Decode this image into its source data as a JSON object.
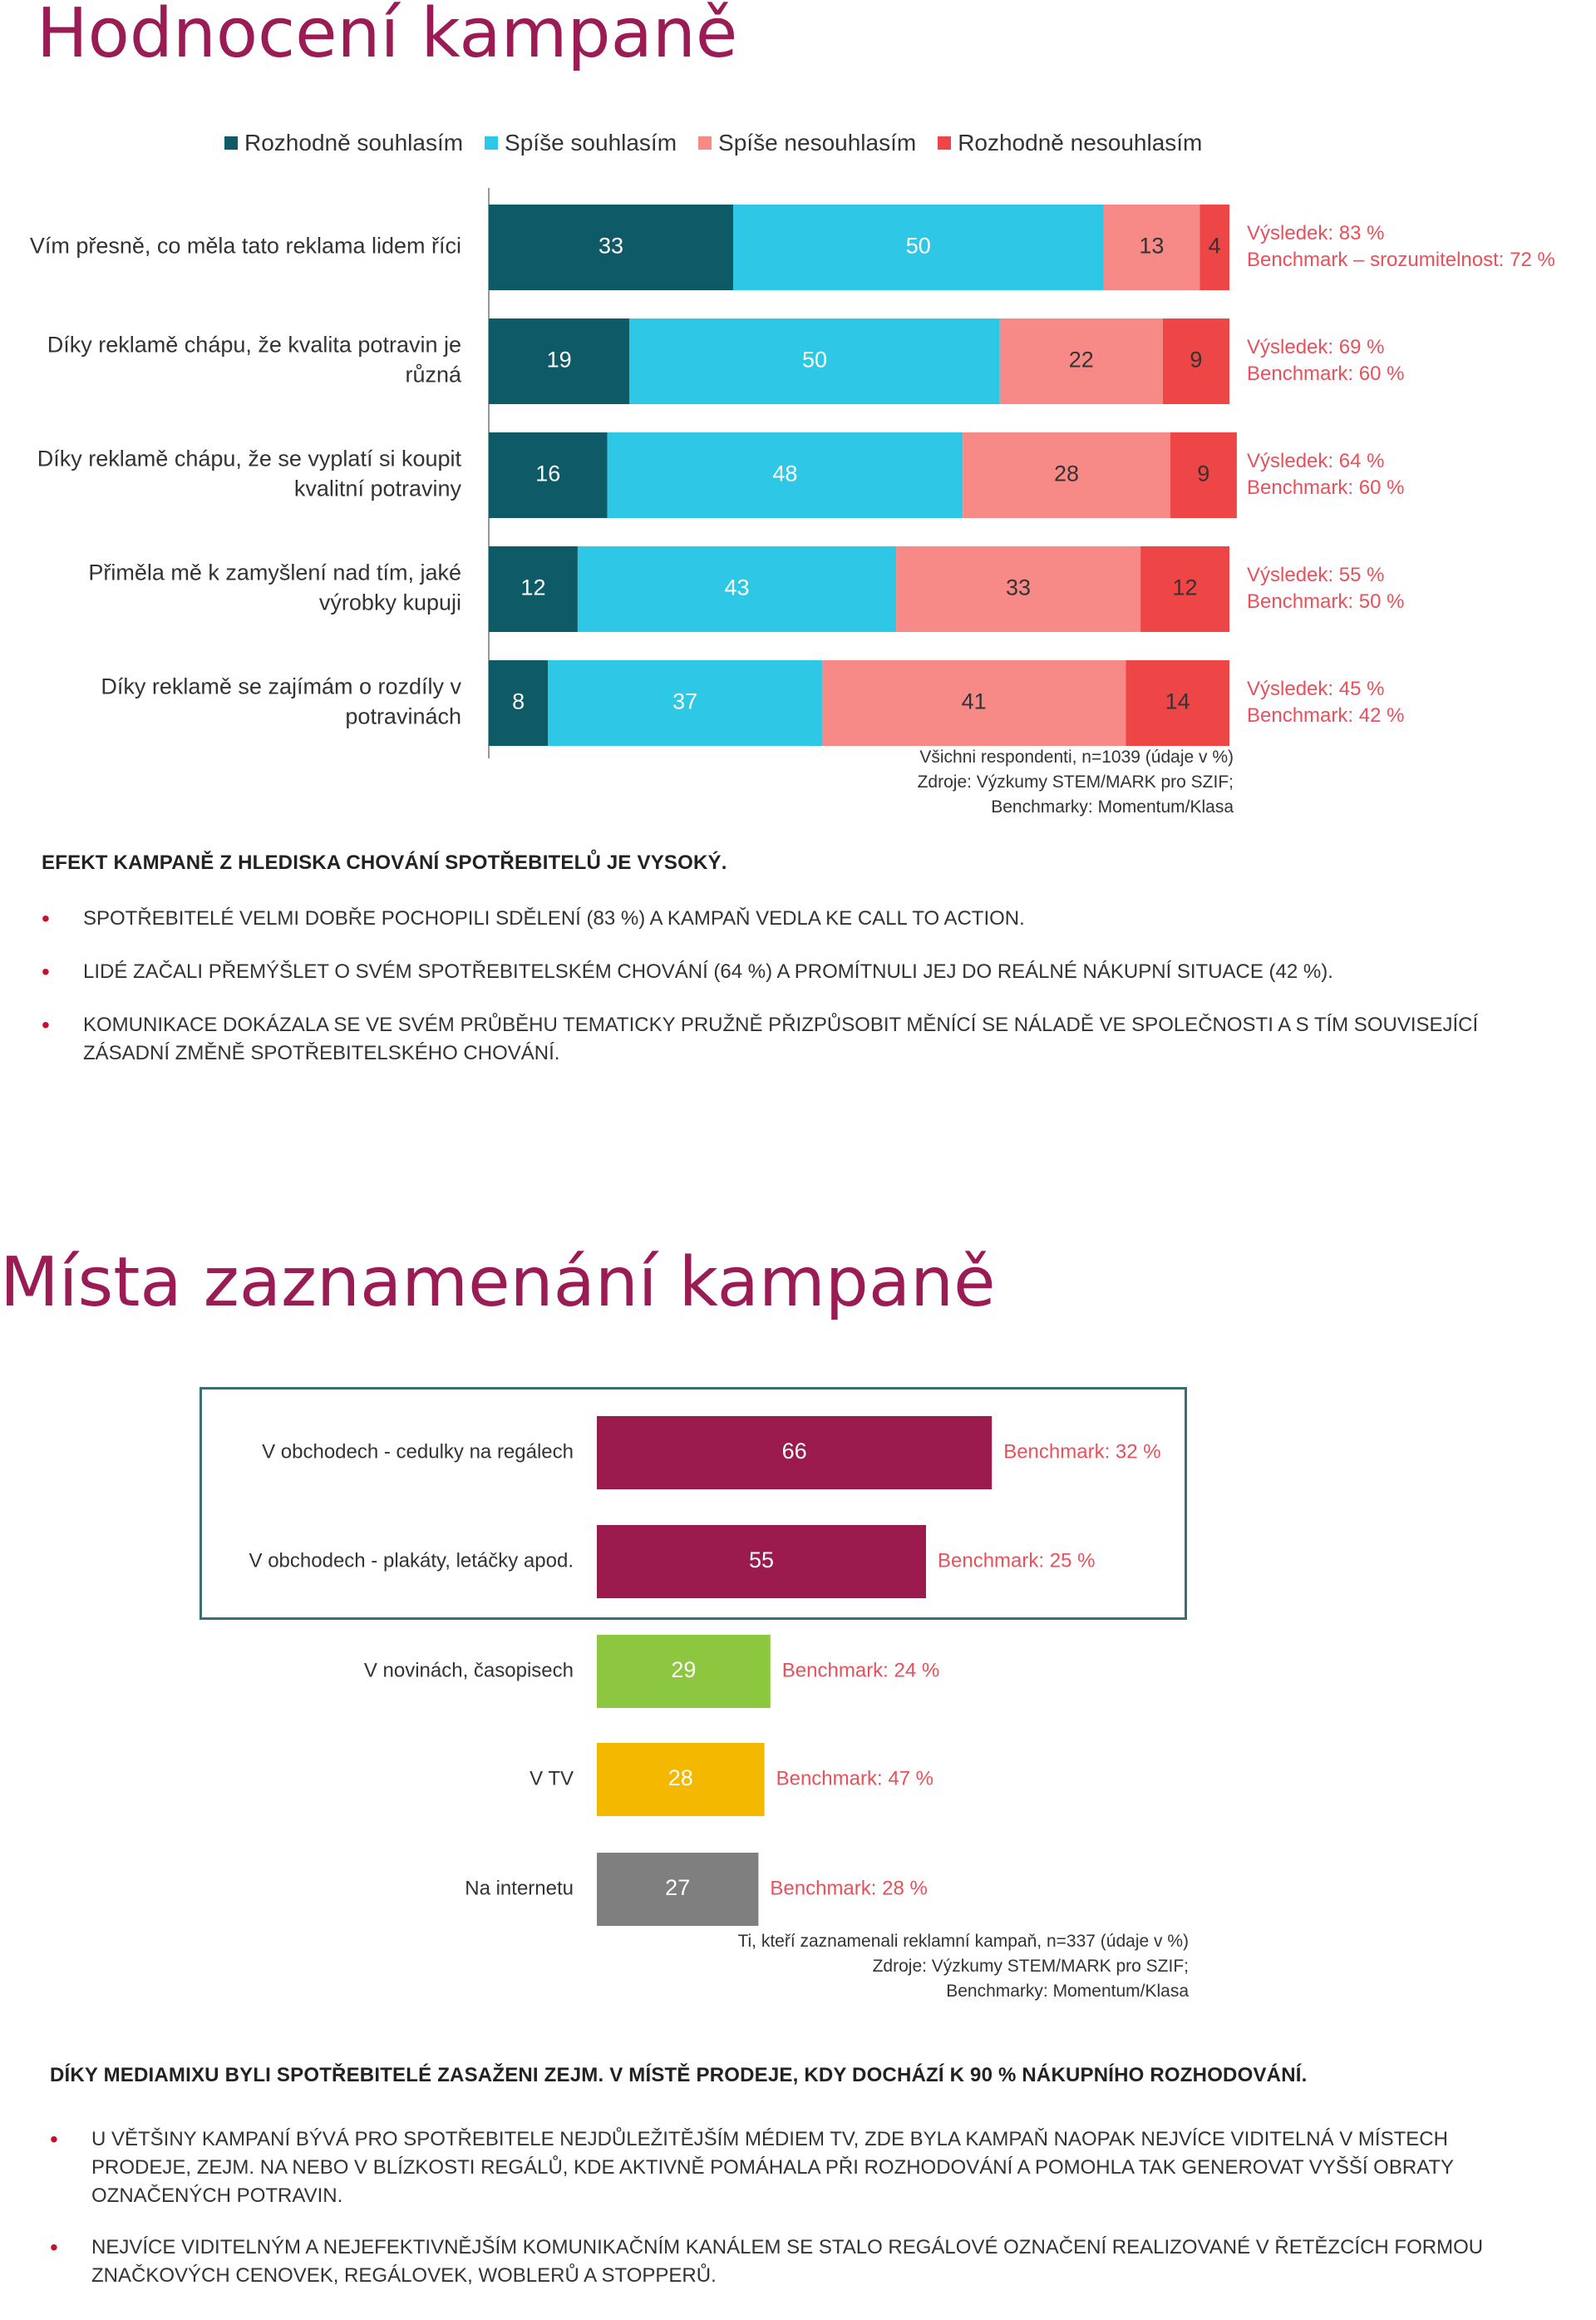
{
  "section1": {
    "title": "Hodnocení kampaně",
    "source_lines": [
      "Všichni respondenti, n=1039 (údaje v %)",
      "Zdroje: Výzkumy STEM/MARK pro SZIF;",
      "Benchmarky: Momentum/Klasa"
    ],
    "heading": "EFEKT KAMPANĚ Z HLEDISKA CHOVÁNÍ SPOTŘEBITELŮ JE VYSOKÝ.",
    "bullets": [
      "SPOTŘEBITELÉ VELMI DOBŘE POCHOPILI SDĚLENÍ (83 %) A KAMPAŇ VEDLA KE CALL TO ACTION.",
      "LIDÉ ZAČALI PŘEMÝŠLET O SVÉM SPOTŘEBITELSKÉM CHOVÁNÍ (64 %) A PROMÍTNULI JEJ DO REÁLNÉ NÁKUPNÍ SITUACE (42 %).",
      "KOMUNIKACE DOKÁZALA SE VE SVÉM PRŮBĚHU TEMATICKY PRUŽNĚ PŘIZPŮSOBIT MĚNÍCÍ SE NÁLADĚ VE SPOLEČNOSTI A S TÍM SOUVISEJÍCÍ ZÁSADNÍ ZMĚNĚ SPOTŘEBITELSKÉHO CHOVÁNÍ."
    ]
  },
  "section2": {
    "title": "Místa zaznamenání kampaně",
    "source_lines": [
      "Ti, kteří zaznamenali reklamní kampaň, n=337 (údaje v %)",
      "Zdroje: Výzkumy STEM/MARK pro SZIF;",
      "Benchmarky: Momentum/Klasa"
    ],
    "heading": "DÍKY MEDIAMIXU BYLI SPOTŘEBITELÉ ZASAŽENI ZEJM. V MÍSTĚ PRODEJE, KDY DOCHÁZÍ K 90 % NÁKUPNÍHO ROZHODOVÁNÍ.",
    "bullets": [
      "U VĚTŠINY KAMPANÍ BÝVÁ PRO SPOTŘEBITELE NEJDŮLEŽITĚJŠÍM MÉDIEM TV, ZDE BYLA KAMPAŇ NAOPAK NEJVÍCE VIDITELNÁ V MÍSTECH PRODEJE, ZEJM. NA NEBO V BLÍZKOSTI REGÁLŮ, KDE AKTIVNĚ POMÁHALA PŘI ROZHODOVÁNÍ A POMOHLA TAK GENEROVAT VYŠŠÍ OBRATY OZNAČENÝCH POTRAVIN.",
      "NEJVÍCE VIDITELNÝM A NEJEFEKTIVNĚJŠÍM KOMUNIKAČNÍM KANÁLEM SE STALO REGÁLOVÉ OZNAČENÍ REALIZOVANÉ V ŘETĚZCÍCH FORMOU ZNAČKOVÝCH CENOVEK, REGÁLOVEK, WOBLERŮ A STOPPERŮ."
    ]
  },
  "chart_data": [
    {
      "type": "bar",
      "orientation": "horizontal",
      "stacked": true,
      "legend_position": "top",
      "grid": false,
      "xlim": [
        0,
        100
      ],
      "categories": [
        "Vím přesně, co měla tato reklama lidem říci",
        "Díky reklamě chápu, že kvalita potravin je různá",
        "Díky reklamě chápu, že se vyplatí si koupit kvalitní potraviny",
        "Přiměla mě k zamyšlení nad tím, jaké výrobky kupuji",
        "Díky reklamě se zajímám o rozdíly v potravinách"
      ],
      "series": [
        {
          "name": "Rozhodně souhlasím",
          "color": "#0e5a66",
          "values": [
            33,
            19,
            16,
            12,
            8
          ]
        },
        {
          "name": "Spíše souhlasím",
          "color": "#2ec7e6",
          "values": [
            50,
            50,
            48,
            43,
            37
          ]
        },
        {
          "name": "Spíše nesouhlasím",
          "color": "#f78a87",
          "values": [
            13,
            22,
            28,
            33,
            41
          ]
        },
        {
          "name": "Rozhodně nesouhlasím",
          "color": "#ee4646",
          "values": [
            4,
            9,
            9,
            12,
            14
          ]
        }
      ],
      "annotations": [
        [
          "Výsledek: 83 %",
          "Benchmark – srozumitelnost: 72 %"
        ],
        [
          "Výsledek: 69 %",
          "Benchmark: 60 %"
        ],
        [
          "Výsledek: 64 %",
          "Benchmark: 60 %"
        ],
        [
          "Výsledek: 55 %",
          "Benchmark: 50 %"
        ],
        [
          "Výsledek: 45 %",
          "Benchmark: 42 %"
        ]
      ],
      "annotation_color": "#e8505b"
    },
    {
      "type": "bar",
      "orientation": "horizontal",
      "grid": false,
      "xlim": [
        0,
        100
      ],
      "categories": [
        "V obchodech - cedulky na regálech",
        "V obchodech - plakáty, letáčky apod.",
        "V novinách, časopisech",
        "V TV",
        "Na internetu"
      ],
      "values": [
        66,
        55,
        29,
        28,
        27
      ],
      "colors": [
        "#9b1b4f",
        "#9b1b4f",
        "#8dc63f",
        "#f5b800",
        "#7f7f7f"
      ],
      "benchmarks": [
        "Benchmark: 32 %",
        "Benchmark: 25 %",
        "Benchmark: 24 %",
        "Benchmark: 47 %",
        "Benchmark: 28 %"
      ],
      "benchmark_color": "#e8505b"
    }
  ]
}
